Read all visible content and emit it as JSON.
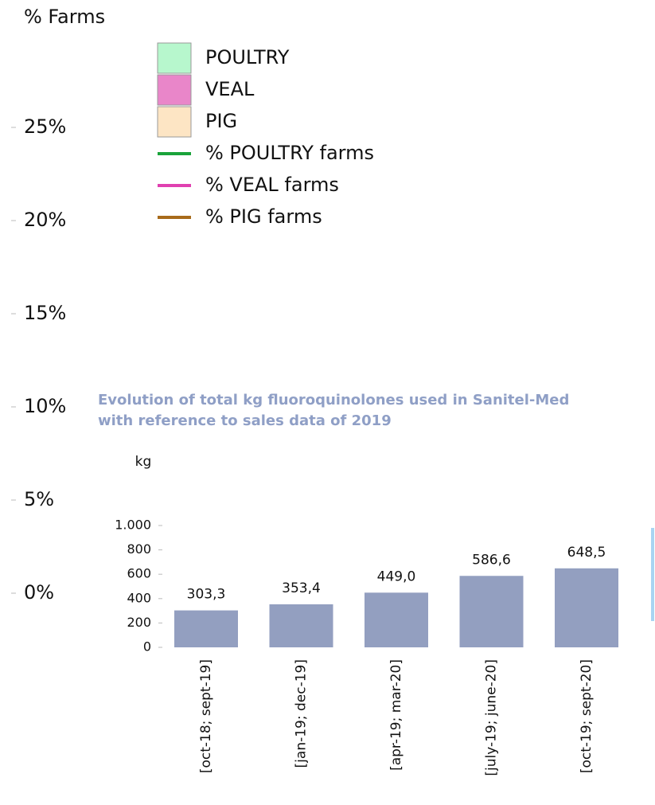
{
  "chart_data": [
    {
      "type": "legend-axis",
      "y_label": "% Farms",
      "ylim": [
        0,
        30
      ],
      "yticks": [
        {
          "value": 0,
          "label": "0%"
        },
        {
          "value": 5,
          "label": "5%"
        },
        {
          "value": 10,
          "label": "10%"
        },
        {
          "value": 15,
          "label": "15%"
        },
        {
          "value": 20,
          "label": "20%"
        },
        {
          "value": 25,
          "label": "25%"
        }
      ],
      "legend": [
        {
          "name": "POULTRY",
          "color": "#b7f7cd",
          "style": "box"
        },
        {
          "name": "VEAL",
          "color": "#e986c9",
          "style": "box"
        },
        {
          "name": "PIG",
          "color": "#fde5c4",
          "style": "box"
        },
        {
          "name": "% POULTRY farms",
          "color": "#1aa33a",
          "style": "line"
        },
        {
          "name": "% VEAL farms",
          "color": "#e040b0",
          "style": "line"
        },
        {
          "name": "% PIG farms",
          "color": "#a86b1a",
          "style": "line"
        }
      ]
    },
    {
      "type": "bar",
      "title": [
        "Evolution of total kg fluoroquinolones used in Sanitel-Med",
        "with reference to sales data of 2019"
      ],
      "y_label": "kg",
      "categories": [
        "[oct-18; sept-19]",
        "[jan-19; dec-19]",
        "[apr-19; mar-20]",
        "[july-19; june-20]",
        "[oct-19; sept-20]"
      ],
      "values": [
        303.3,
        353.4,
        449.0,
        586.6,
        648.5
      ],
      "value_labels": [
        "303,3",
        "353,4",
        "449,0",
        "586,6",
        "648,5"
      ],
      "color": "#939fc0",
      "ylim": [
        0,
        1000
      ],
      "yticks": [
        0,
        200,
        400,
        600,
        800,
        {
          "value": 1000,
          "label": "1.000"
        }
      ]
    }
  ]
}
